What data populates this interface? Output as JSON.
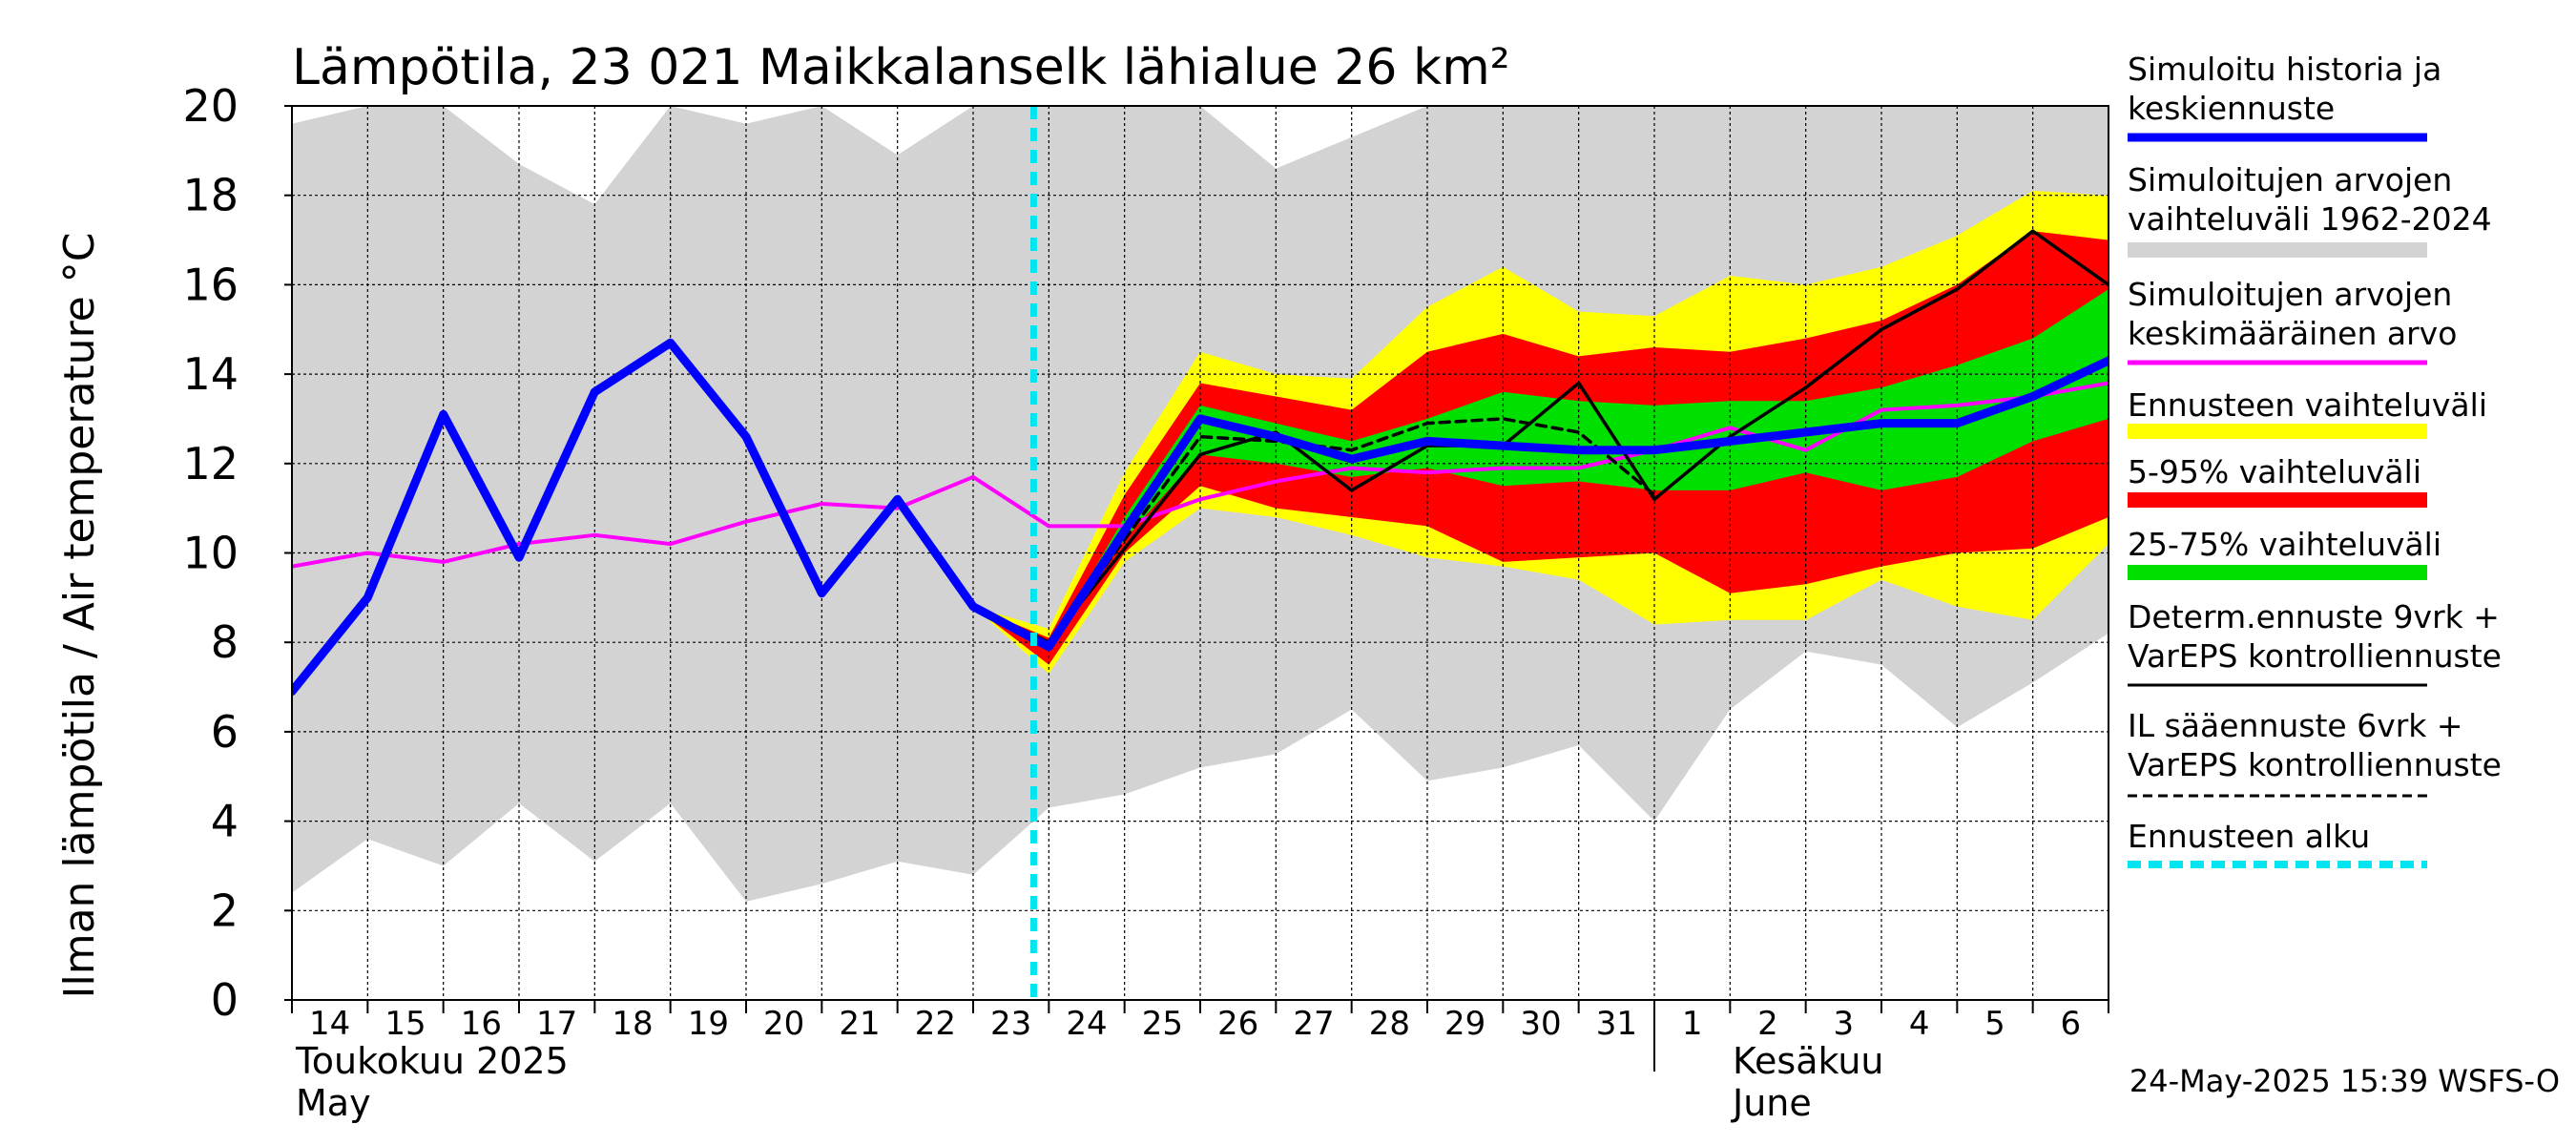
{
  "chart_data": {
    "type": "area",
    "title": "Lämpötila, 23 021 Maikkalanselk lähialue 26 km²",
    "ylabel": "Ilman lämpötila / Air temperature   °C",
    "ylim": [
      0,
      20
    ],
    "yticks": [
      0,
      2,
      4,
      6,
      8,
      10,
      12,
      14,
      16,
      18,
      20
    ],
    "grid": true,
    "legend_position": "right",
    "x_labels": [
      "14",
      "15",
      "16",
      "17",
      "18",
      "19",
      "20",
      "21",
      "22",
      "23",
      "24",
      "25",
      "26",
      "27",
      "28",
      "29",
      "30",
      "31",
      "1",
      "2",
      "3",
      "4",
      "5",
      "6"
    ],
    "months": [
      {
        "line1": "Toukokuu  2025",
        "line2": "May"
      },
      {
        "line1": "Kesäkuu",
        "line2": "June"
      }
    ],
    "timestamp": "24-May-2025 15:39 WSFS-O",
    "forecast_start": 23.8,
    "colors": {
      "history_range": "#d3d3d3",
      "forecast_range": "#ffff00",
      "p5_95": "#ff0000",
      "p25_75": "#00e000",
      "median_history": "#0000ff",
      "mean": "#ff00ff",
      "deterministic": "#000000",
      "il_forecast": "#000000",
      "forecast_start": "#00e5ee"
    },
    "bands": {
      "history_range": {
        "x": [
          14.0,
          15.0,
          16.0,
          17.0,
          18.0,
          19.0,
          20.0,
          21.0,
          22.0,
          23.0,
          24.0,
          25.0,
          26.0,
          27.0,
          28.0,
          29.0,
          30.0,
          31.0,
          32.0,
          33.0,
          34.0,
          35.0,
          36.0,
          37.0,
          38.0
        ],
        "low": [
          2.4,
          3.6,
          3.0,
          4.4,
          3.1,
          4.4,
          2.2,
          2.6,
          3.1,
          2.8,
          4.3,
          4.6,
          5.2,
          5.5,
          6.5,
          4.9,
          5.2,
          5.7,
          4.0,
          6.5,
          7.8,
          7.5,
          6.1,
          7.1,
          8.2
        ],
        "high": [
          19.6,
          20.0,
          20.0,
          18.7,
          17.8,
          20.0,
          19.6,
          20.0,
          18.9,
          20.0,
          20.0,
          20.0,
          20.0,
          18.6,
          19.3,
          20.0,
          20.0,
          20.0,
          20.0,
          20.0,
          20.0,
          20.0,
          20.0,
          20.0,
          20.0
        ]
      },
      "forecast_range": {
        "x": [
          23.0,
          24.0,
          25.0,
          26.0,
          27.0,
          28.0,
          29.0,
          30.0,
          31.0,
          32.0,
          33.0,
          34.0,
          35.0,
          36.0,
          37.0,
          38.0
        ],
        "low": [
          8.8,
          7.3,
          9.8,
          11.0,
          10.8,
          10.4,
          9.9,
          9.7,
          9.4,
          8.4,
          8.5,
          8.5,
          9.4,
          8.8,
          8.5,
          10.2
        ],
        "high": [
          8.8,
          8.3,
          11.8,
          14.5,
          14.0,
          13.9,
          15.5,
          16.4,
          15.4,
          15.3,
          16.2,
          16.0,
          16.4,
          17.1,
          18.1,
          18.0
        ]
      },
      "p5_95": {
        "x": [
          23.0,
          24.0,
          25.0,
          26.0,
          27.0,
          28.0,
          29.0,
          30.0,
          31.0,
          32.0,
          33.0,
          34.0,
          35.0,
          36.0,
          37.0,
          38.0
        ],
        "low": [
          8.8,
          7.5,
          10.0,
          11.5,
          11.0,
          10.8,
          10.6,
          9.8,
          9.9,
          10.0,
          9.1,
          9.3,
          9.7,
          10.0,
          10.1,
          10.8
        ],
        "high": [
          8.8,
          8.1,
          11.3,
          13.8,
          13.5,
          13.2,
          14.5,
          14.9,
          14.4,
          14.6,
          14.5,
          14.8,
          15.2,
          16.0,
          17.2,
          17.0
        ]
      },
      "p25_75": {
        "x": [
          23.0,
          24.0,
          25.0,
          26.0,
          27.0,
          28.0,
          29.0,
          30.0,
          31.0,
          32.0,
          33.0,
          34.0,
          35.0,
          36.0,
          37.0,
          38.0
        ],
        "low": [
          8.8,
          7.8,
          10.3,
          12.2,
          12.0,
          11.7,
          11.9,
          11.5,
          11.6,
          11.4,
          11.4,
          11.8,
          11.4,
          11.7,
          12.5,
          13.0
        ],
        "high": [
          8.8,
          7.9,
          10.8,
          13.3,
          12.9,
          12.5,
          13.0,
          13.6,
          13.4,
          13.3,
          13.4,
          13.4,
          13.7,
          14.2,
          14.8,
          15.9
        ]
      }
    },
    "series": [
      {
        "name": "Simuloitujen arvojen keskimääräinen arvo",
        "x": [
          14.0,
          15.0,
          16.0,
          17.0,
          18.0,
          19.0,
          20.0,
          21.0,
          22.0,
          23.0,
          24.0,
          25.0,
          26.0,
          27.0,
          28.0,
          29.0,
          30.0,
          31.0,
          32.0,
          33.0,
          34.0,
          35.0,
          36.0,
          37.0,
          38.0
        ],
        "y": [
          9.7,
          10.0,
          9.8,
          10.2,
          10.4,
          10.2,
          10.7,
          11.1,
          11.0,
          11.7,
          10.6,
          10.6,
          11.2,
          11.6,
          11.9,
          11.8,
          11.9,
          11.9,
          12.3,
          12.8,
          12.3,
          13.2,
          13.3,
          13.5,
          13.8
        ]
      },
      {
        "name": "Determ.ennuste 9vrk + VarEPS kontrolliennuste",
        "x": [
          23.0,
          24.0,
          25.0,
          26.0,
          27.0,
          28.0,
          29.0,
          30.0,
          31.0,
          32.0,
          33.0,
          34.0,
          35.0,
          36.0,
          37.0,
          38.0
        ],
        "y": [
          8.8,
          8.0,
          10.1,
          12.2,
          12.7,
          11.4,
          12.4,
          12.4,
          13.8,
          11.2,
          12.6,
          13.7,
          15.0,
          15.9,
          17.2,
          16.0
        ]
      },
      {
        "name": "IL sääennuste 6vrk + VarEPS kontrolliennuste",
        "x": [
          23.0,
          24.0,
          25.0,
          26.0,
          27.0,
          28.0,
          29.0,
          30.0,
          31.0,
          32.0
        ],
        "y": [
          8.8,
          8.0,
          10.3,
          12.6,
          12.5,
          12.3,
          12.9,
          13.0,
          12.7,
          11.3
        ]
      },
      {
        "name": "Simuloitu historia ja keskiennuste",
        "x": [
          14.0,
          15.0,
          16.0,
          17.0,
          18.0,
          19.0,
          20.0,
          21.0,
          22.0,
          23.0,
          24.0,
          25.0,
          26.0,
          27.0,
          28.0,
          29.0,
          30.0,
          31.0,
          32.0,
          33.0,
          34.0,
          35.0,
          36.0,
          37.0,
          38.0
        ],
        "y": [
          6.9,
          9.0,
          13.1,
          9.9,
          13.6,
          14.7,
          12.6,
          9.1,
          11.2,
          8.8,
          7.9,
          10.5,
          13.0,
          12.6,
          12.1,
          12.5,
          12.4,
          12.3,
          12.3,
          12.5,
          12.7,
          12.9,
          12.9,
          13.5,
          14.3
        ]
      }
    ],
    "legend": [
      {
        "lines": [
          "Simuloitu historia ja",
          "keskiennuste"
        ],
        "color": "#0000ff",
        "kind": "line"
      },
      {
        "lines": [
          "Simuloitujen arvojen",
          "vaihteluväli 1962-2024"
        ],
        "color": "#d3d3d3",
        "kind": "band"
      },
      {
        "lines": [
          "Simuloitujen arvojen",
          "keskimääräinen arvo"
        ],
        "color": "#ff00ff",
        "kind": "line"
      },
      {
        "lines": [
          "Ennusteen vaihteluväli"
        ],
        "color": "#ffff00",
        "kind": "band"
      },
      {
        "lines": [
          "5-95% vaihteluväli"
        ],
        "color": "#ff0000",
        "kind": "band"
      },
      {
        "lines": [
          "25-75% vaihteluväli"
        ],
        "color": "#00e000",
        "kind": "band"
      },
      {
        "lines": [
          "Determ.ennuste 9vrk +",
          "VarEPS kontrolliennuste"
        ],
        "color": "#000000",
        "kind": "line"
      },
      {
        "lines": [
          "IL sääennuste 6vrk  +",
          "  VarEPS kontrolliennuste"
        ],
        "color": "#000000",
        "kind": "dashed"
      },
      {
        "lines": [
          "Ennusteen alku"
        ],
        "color": "#00e5ee",
        "kind": "dotted"
      }
    ]
  }
}
